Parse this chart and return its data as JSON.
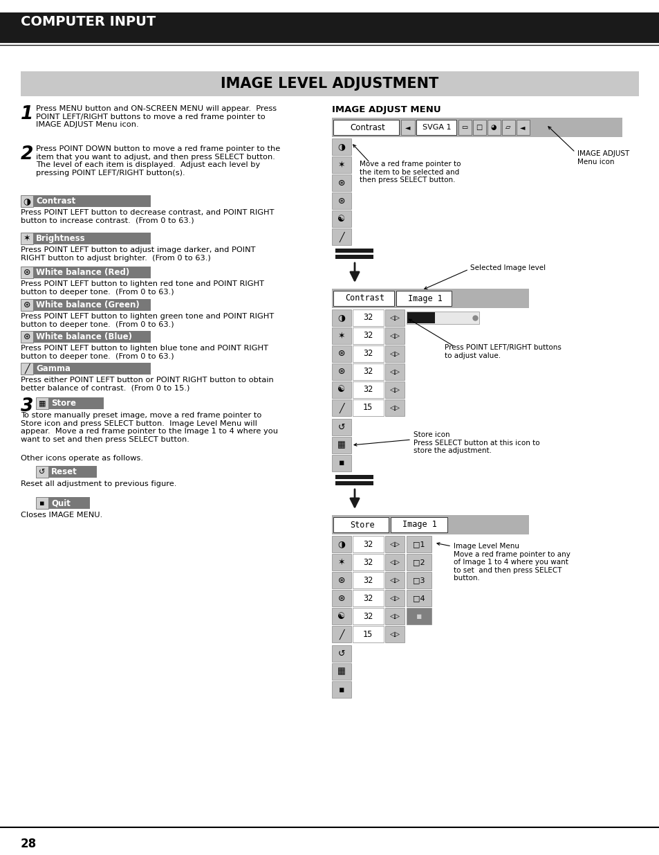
{
  "page_bg": "#ffffff",
  "header_bg": "#1a1a1a",
  "header_text": "COMPUTER INPUT",
  "title_bg": "#c8c8c8",
  "title_text": "IMAGE LEVEL ADJUSTMENT",
  "page_number": "28",
  "menu_gray": "#b8b8b8",
  "menu_white": "#ffffff",
  "menu_dark": "#1a1a1a",
  "icon_gray": "#c0c0c0"
}
